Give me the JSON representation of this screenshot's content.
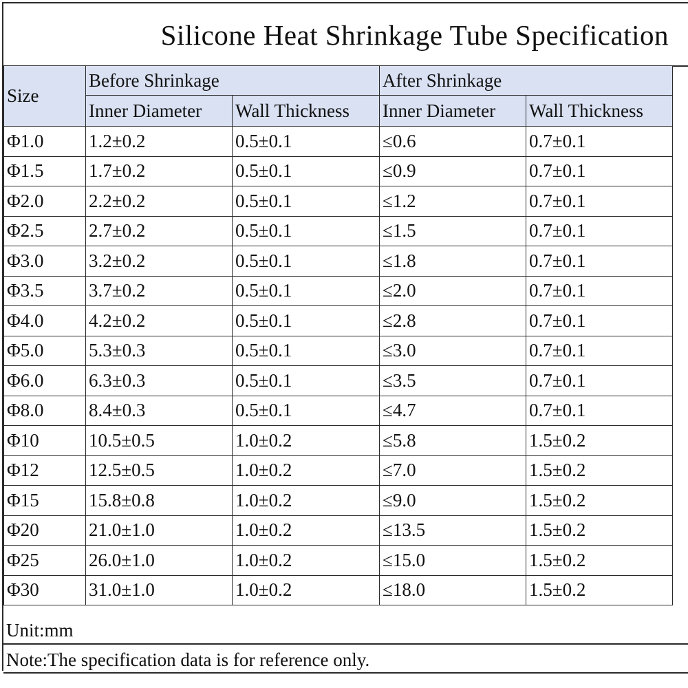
{
  "title": "Silicone Heat Shrinkage Tube Specification",
  "header": {
    "size": "Size",
    "before": "Before Shrinkage",
    "after": "After Shrinkage",
    "inner_diameter": "Inner Diameter",
    "wall_thickness": "Wall Thickness"
  },
  "rows": [
    {
      "size": "Φ1.0",
      "before_id": "1.2±0.2",
      "before_wall": "0.5±0.1",
      "after_id": "≤0.6",
      "after_wall": "0.7±0.1"
    },
    {
      "size": "Φ1.5",
      "before_id": "1.7±0.2",
      "before_wall": "0.5±0.1",
      "after_id": "≤0.9",
      "after_wall": "0.7±0.1"
    },
    {
      "size": "Φ2.0",
      "before_id": "2.2±0.2",
      "before_wall": "0.5±0.1",
      "after_id": "≤1.2",
      "after_wall": "0.7±0.1"
    },
    {
      "size": "Φ2.5",
      "before_id": "2.7±0.2",
      "before_wall": "0.5±0.1",
      "after_id": "≤1.5",
      "after_wall": "0.7±0.1"
    },
    {
      "size": "Φ3.0",
      "before_id": "3.2±0.2",
      "before_wall": "0.5±0.1",
      "after_id": "≤1.8",
      "after_wall": "0.7±0.1"
    },
    {
      "size": "Φ3.5",
      "before_id": "3.7±0.2",
      "before_wall": "0.5±0.1",
      "after_id": "≤2.0",
      "after_wall": "0.7±0.1"
    },
    {
      "size": "Φ4.0",
      "before_id": "4.2±0.2",
      "before_wall": "0.5±0.1",
      "after_id": "≤2.8",
      "after_wall": "0.7±0.1"
    },
    {
      "size": "Φ5.0",
      "before_id": "5.3±0.3",
      "before_wall": "0.5±0.1",
      "after_id": "≤3.0",
      "after_wall": "0.7±0.1"
    },
    {
      "size": "Φ6.0",
      "before_id": "6.3±0.3",
      "before_wall": "0.5±0.1",
      "after_id": "≤3.5",
      "after_wall": "0.7±0.1"
    },
    {
      "size": "Φ8.0",
      "before_id": "8.4±0.3",
      "before_wall": "0.5±0.1",
      "after_id": "≤4.7",
      "after_wall": "0.7±0.1"
    },
    {
      "size": "Φ10",
      "before_id": "10.5±0.5",
      "before_wall": "1.0±0.2",
      "after_id": "≤5.8",
      "after_wall": "1.5±0.2"
    },
    {
      "size": "Φ12",
      "before_id": "12.5±0.5",
      "before_wall": "1.0±0.2",
      "after_id": "≤7.0",
      "after_wall": "1.5±0.2"
    },
    {
      "size": "Φ15",
      "before_id": "15.8±0.8",
      "before_wall": "1.0±0.2",
      "after_id": "≤9.0",
      "after_wall": "1.5±0.2"
    },
    {
      "size": "Φ20",
      "before_id": "21.0±1.0",
      "before_wall": "1.0±0.2",
      "after_id": "≤13.5",
      "after_wall": "1.5±0.2"
    },
    {
      "size": "Φ25",
      "before_id": "26.0±1.0",
      "before_wall": "1.0±0.2",
      "after_id": "≤15.0",
      "after_wall": "1.5±0.2"
    },
    {
      "size": "Φ30",
      "before_id": "31.0±1.0",
      "before_wall": "1.0±0.2",
      "after_id": "≤18.0",
      "after_wall": "1.5±0.2"
    }
  ],
  "unit": "Unit:mm",
  "note": "Note:The specification data is for reference only.",
  "colors": {
    "header_fill": "#d9e1f2",
    "border": "#2a2a2a"
  }
}
